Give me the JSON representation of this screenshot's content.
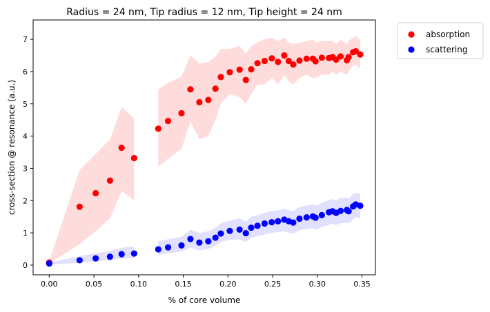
{
  "chart_data": {
    "type": "scatter",
    "title": "Radius = 24 nm, Tip radius = 12 nm, Tip height = 24 nm",
    "xlabel": "% of core volume",
    "ylabel": "cross-section @ resonance (a.u.)",
    "xlim": [
      -0.018,
      0.365
    ],
    "ylim": [
      -0.3,
      7.6
    ],
    "xticks": [
      0.0,
      0.05,
      0.1,
      0.15,
      0.2,
      0.25,
      0.3,
      0.35
    ],
    "xtick_labels": [
      "0.00",
      "0.05",
      "0.10",
      "0.15",
      "0.20",
      "0.25",
      "0.30",
      "0.35"
    ],
    "yticks": [
      0,
      1,
      2,
      3,
      4,
      5,
      6,
      7
    ],
    "ytick_labels": [
      "0",
      "1",
      "2",
      "3",
      "4",
      "5",
      "6",
      "7"
    ],
    "grid": false,
    "legend": "outside-top-right",
    "series": [
      {
        "name": "absorption",
        "color": "#ff0000",
        "band_color": "#ffd6d6",
        "points": [
          [
            0.0,
            0.08
          ],
          [
            0.034,
            1.81
          ],
          [
            0.052,
            2.23
          ],
          [
            0.068,
            2.62
          ],
          [
            0.081,
            3.64
          ],
          [
            0.095,
            3.32
          ],
          [
            0.122,
            4.23
          ],
          [
            0.133,
            4.47
          ],
          [
            0.148,
            4.71
          ],
          [
            0.158,
            5.45
          ],
          [
            0.168,
            5.05
          ],
          [
            0.178,
            5.12
          ],
          [
            0.186,
            5.47
          ],
          [
            0.192,
            5.83
          ],
          [
            0.202,
            5.98
          ],
          [
            0.213,
            6.06
          ],
          [
            0.22,
            5.74
          ],
          [
            0.226,
            6.07
          ],
          [
            0.233,
            6.26
          ],
          [
            0.241,
            6.33
          ],
          [
            0.249,
            6.41
          ],
          [
            0.256,
            6.3
          ],
          [
            0.263,
            6.5
          ],
          [
            0.268,
            6.33
          ],
          [
            0.273,
            6.22
          ],
          [
            0.28,
            6.34
          ],
          [
            0.288,
            6.4
          ],
          [
            0.295,
            6.4
          ],
          [
            0.298,
            6.32
          ],
          [
            0.305,
            6.43
          ],
          [
            0.313,
            6.42
          ],
          [
            0.317,
            6.45
          ],
          [
            0.321,
            6.37
          ],
          [
            0.326,
            6.47
          ],
          [
            0.333,
            6.35
          ],
          [
            0.335,
            6.45
          ],
          [
            0.34,
            6.6
          ],
          [
            0.343,
            6.63
          ],
          [
            0.348,
            6.53
          ]
        ],
        "band_segments": [
          {
            "x": [
              0.0,
              0.034,
              0.052,
              0.068,
              0.081,
              0.095
            ],
            "lower": [
              0.05,
              0.65,
              1.05,
              1.45,
              2.3,
              2.0
            ],
            "upper": [
              0.12,
              2.95,
              3.45,
              3.9,
              4.9,
              4.55
            ]
          },
          {
            "x": [
              0.122,
              0.133,
              0.148,
              0.158,
              0.168,
              0.178,
              0.186,
              0.192,
              0.202,
              0.213,
              0.22,
              0.226,
              0.233,
              0.241,
              0.249,
              0.256,
              0.263,
              0.268,
              0.273,
              0.28,
              0.288,
              0.295,
              0.298,
              0.305,
              0.313,
              0.317,
              0.321,
              0.326,
              0.333,
              0.335,
              0.34,
              0.343,
              0.348
            ],
            "lower": [
              3.05,
              3.3,
              3.6,
              4.45,
              3.9,
              4.0,
              4.5,
              5.0,
              5.3,
              5.2,
              5.0,
              5.3,
              5.6,
              5.6,
              5.8,
              5.6,
              5.9,
              5.7,
              5.6,
              5.8,
              5.9,
              5.8,
              5.8,
              5.9,
              5.9,
              6.0,
              5.9,
              6.0,
              5.9,
              6.0,
              6.2,
              6.2,
              6.1
            ],
            "upper": [
              5.45,
              5.65,
              5.85,
              6.5,
              6.25,
              6.3,
              6.45,
              6.7,
              6.7,
              6.8,
              6.55,
              6.8,
              6.9,
              7.0,
              7.05,
              6.95,
              7.05,
              6.9,
              6.85,
              6.9,
              6.95,
              7.0,
              6.9,
              6.95,
              6.95,
              6.95,
              6.85,
              7.0,
              6.85,
              6.95,
              7.05,
              7.1,
              7.0
            ]
          }
        ]
      },
      {
        "name": "scattering",
        "color": "#0000ff",
        "band_color": "#dcdcff",
        "points": [
          [
            0.0,
            0.05
          ],
          [
            0.034,
            0.15
          ],
          [
            0.052,
            0.21
          ],
          [
            0.068,
            0.26
          ],
          [
            0.081,
            0.34
          ],
          [
            0.095,
            0.36
          ],
          [
            0.122,
            0.49
          ],
          [
            0.133,
            0.55
          ],
          [
            0.148,
            0.61
          ],
          [
            0.158,
            0.81
          ],
          [
            0.168,
            0.7
          ],
          [
            0.178,
            0.74
          ],
          [
            0.186,
            0.85
          ],
          [
            0.192,
            0.98
          ],
          [
            0.202,
            1.06
          ],
          [
            0.213,
            1.1
          ],
          [
            0.22,
            0.99
          ],
          [
            0.226,
            1.16
          ],
          [
            0.233,
            1.22
          ],
          [
            0.241,
            1.29
          ],
          [
            0.249,
            1.33
          ],
          [
            0.256,
            1.36
          ],
          [
            0.263,
            1.41
          ],
          [
            0.268,
            1.36
          ],
          [
            0.273,
            1.32
          ],
          [
            0.28,
            1.44
          ],
          [
            0.288,
            1.48
          ],
          [
            0.295,
            1.51
          ],
          [
            0.298,
            1.47
          ],
          [
            0.305,
            1.55
          ],
          [
            0.313,
            1.64
          ],
          [
            0.317,
            1.67
          ],
          [
            0.321,
            1.62
          ],
          [
            0.326,
            1.68
          ],
          [
            0.333,
            1.71
          ],
          [
            0.335,
            1.67
          ],
          [
            0.34,
            1.82
          ],
          [
            0.343,
            1.88
          ],
          [
            0.348,
            1.84
          ]
        ],
        "band_segments": [
          {
            "x": [
              0.0,
              0.034,
              0.052,
              0.068,
              0.081,
              0.095
            ],
            "lower": [
              0.02,
              0.07,
              0.11,
              0.15,
              0.2,
              0.22
            ],
            "upper": [
              0.08,
              0.28,
              0.37,
              0.44,
              0.54,
              0.58
            ]
          },
          {
            "x": [
              0.122,
              0.133,
              0.148,
              0.158,
              0.168,
              0.178,
              0.186,
              0.192,
              0.202,
              0.213,
              0.22,
              0.226,
              0.233,
              0.241,
              0.249,
              0.256,
              0.263,
              0.268,
              0.273,
              0.28,
              0.288,
              0.295,
              0.298,
              0.305,
              0.313,
              0.317,
              0.321,
              0.326,
              0.333,
              0.335,
              0.34,
              0.343,
              0.348
            ],
            "lower": [
              0.32,
              0.37,
              0.42,
              0.55,
              0.45,
              0.5,
              0.6,
              0.72,
              0.78,
              0.8,
              0.72,
              0.85,
              0.9,
              0.95,
              1.0,
              1.02,
              1.05,
              1.0,
              0.98,
              1.08,
              1.12,
              1.15,
              1.1,
              1.18,
              1.25,
              1.28,
              1.24,
              1.3,
              1.32,
              1.3,
              1.42,
              1.48,
              1.45
            ],
            "upper": [
              0.75,
              0.8,
              0.88,
              1.1,
              1.0,
              1.05,
              1.15,
              1.3,
              1.38,
              1.45,
              1.35,
              1.5,
              1.55,
              1.62,
              1.68,
              1.7,
              1.75,
              1.7,
              1.68,
              1.8,
              1.85,
              1.88,
              1.85,
              1.92,
              2.02,
              2.05,
              2.0,
              2.08,
              2.1,
              2.06,
              2.2,
              2.25,
              2.22
            ]
          }
        ]
      }
    ]
  }
}
